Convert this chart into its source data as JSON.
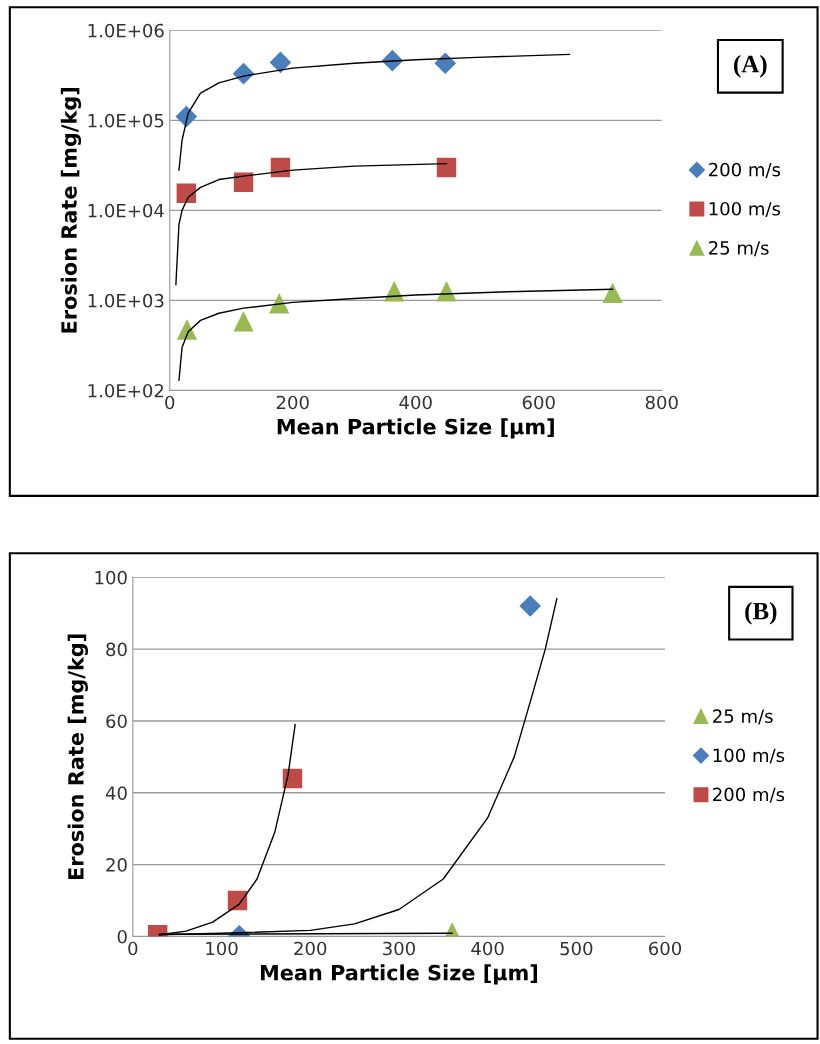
{
  "chart_data": [
    {
      "type": "scatter",
      "xlabel": "Mean Particle Size [µm]",
      "ylabel": "Erosion Rate [mg/kg]",
      "log": "y",
      "grid": "y",
      "legend": "right",
      "xlim": [
        0,
        800
      ],
      "xticks": [
        0,
        200,
        400,
        600,
        800
      ],
      "ylim": [
        100,
        1000000
      ],
      "yticks": [
        {
          "value": 100,
          "label": "1.0E+02"
        },
        {
          "value": 1000,
          "label": "1.0E+03"
        },
        {
          "value": 10000,
          "label": "1.0E+04"
        },
        {
          "value": 100000,
          "label": "1.0E+05"
        },
        {
          "value": 1000000,
          "label": "1.0E+06"
        }
      ],
      "annotations": [
        "(A)"
      ],
      "series": [
        {
          "name": "200 m/s",
          "marker": "diamond",
          "color": "#4a7ebb",
          "x": [
            27,
            120,
            180,
            362,
            448
          ],
          "values": [
            110000,
            330000,
            440000,
            460000,
            430000
          ]
        },
        {
          "name": "100 m/s",
          "marker": "square",
          "color": "#be4b48",
          "x": [
            27,
            120,
            180,
            450
          ],
          "values": [
            15500,
            20500,
            30000,
            30000
          ]
        },
        {
          "name": "25 m/s",
          "marker": "triangle",
          "color": "#98b954",
          "x": [
            28,
            120,
            178,
            365,
            450,
            720
          ],
          "values": [
            470,
            580,
            920,
            1250,
            1250,
            1200
          ]
        },
        {
          "type": "line",
          "marker": "none",
          "color": "#000000",
          "x": [
            15,
            20,
            30,
            50,
            80,
            120,
            200,
            300,
            400,
            500,
            650
          ],
          "values": [
            28000,
            60000,
            120000,
            200000,
            260000,
            310000,
            380000,
            430000,
            470000,
            500000,
            540000
          ]
        },
        {
          "type": "line",
          "marker": "none",
          "color": "#000000",
          "x": [
            10,
            15,
            20,
            30,
            50,
            80,
            120,
            200,
            300,
            450
          ],
          "values": [
            1500,
            7000,
            10000,
            14000,
            18000,
            22000,
            24000,
            28000,
            31000,
            33000
          ]
        },
        {
          "type": "line",
          "marker": "none",
          "color": "#000000",
          "x": [
            15,
            20,
            30,
            50,
            80,
            120,
            200,
            300,
            400,
            550,
            720
          ],
          "values": [
            130,
            300,
            450,
            600,
            720,
            820,
            950,
            1050,
            1150,
            1250,
            1330
          ]
        }
      ]
    },
    {
      "type": "scatter",
      "xlabel": "Mean Particle Size [µm]",
      "ylabel": "Erosion Rate [mg/kg]",
      "grid": "y",
      "legend": "right",
      "xlim": [
        0,
        600
      ],
      "xticks": [
        0,
        100,
        200,
        300,
        400,
        500,
        600
      ],
      "ylim": [
        0,
        100
      ],
      "yticks": [
        0,
        20,
        40,
        60,
        80,
        100
      ],
      "annotations": [
        "(B)"
      ],
      "series": [
        {
          "name": "25 m/s",
          "marker": "triangle",
          "color": "#98b954",
          "x": [
            360
          ],
          "values": [
            1
          ]
        },
        {
          "name": "100 m/s",
          "marker": "diamond",
          "color": "#4a7ebb",
          "x": [
            120,
            448
          ],
          "values": [
            0.2,
            92
          ]
        },
        {
          "name": "200 m/s",
          "marker": "square",
          "color": "#be4b48",
          "x": [
            28,
            118,
            180
          ],
          "values": [
            0.5,
            10,
            44
          ]
        },
        {
          "type": "line",
          "marker": "none",
          "color": "#000000",
          "x": [
            30,
            360
          ],
          "values": [
            0.6,
            0.9
          ]
        },
        {
          "type": "line",
          "marker": "none",
          "color": "#000000",
          "x": [
            30,
            100,
            200,
            250,
            300,
            350,
            400,
            430,
            450,
            465,
            478
          ],
          "values": [
            0.5,
            0.9,
            1.7,
            3.5,
            7.5,
            16,
            33,
            50,
            67,
            80,
            94
          ]
        },
        {
          "type": "line",
          "marker": "none",
          "color": "#000000",
          "x": [
            30,
            60,
            90,
            120,
            140,
            160,
            175,
            183
          ],
          "values": [
            0.5,
            1.5,
            4,
            9,
            16,
            29,
            45,
            59
          ]
        }
      ]
    }
  ]
}
